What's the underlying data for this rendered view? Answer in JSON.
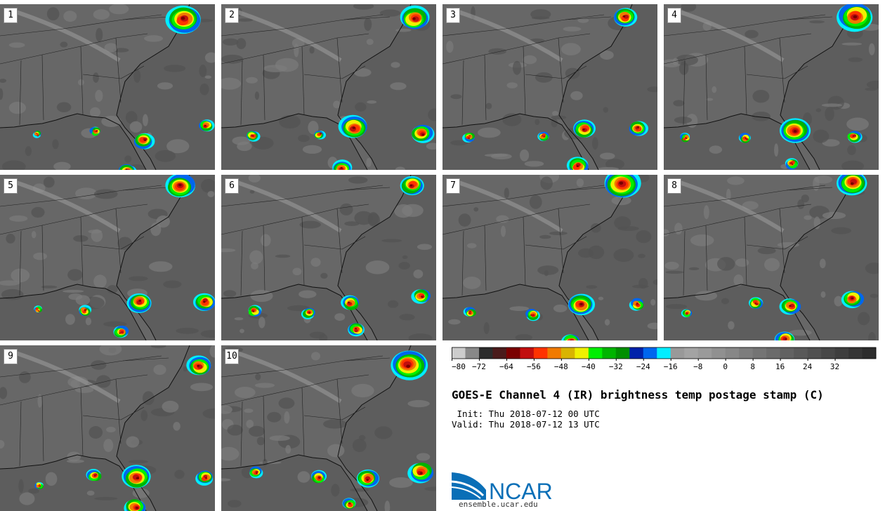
{
  "panels": [
    {
      "label": "1"
    },
    {
      "label": "2"
    },
    {
      "label": "3"
    },
    {
      "label": "4"
    },
    {
      "label": "5"
    },
    {
      "label": "6"
    },
    {
      "label": "7"
    },
    {
      "label": "8"
    },
    {
      "label": "9"
    },
    {
      "label": "10"
    }
  ],
  "colorbar": {
    "colors": [
      "#cccccc",
      "#888888",
      "#2b2b2b",
      "#4a1b1b",
      "#7a0000",
      "#c20e0e",
      "#ff3300",
      "#f07a00",
      "#d9b400",
      "#f0f000",
      "#00ee00",
      "#00b400",
      "#008f00",
      "#0022aa",
      "#0066ee",
      "#00eeff",
      "#999999",
      "#a3a3a3",
      "#9a9a9a",
      "#909090",
      "#878787",
      "#7d7d7d",
      "#747474",
      "#6b6b6b",
      "#626262",
      "#595959",
      "#505050",
      "#474747",
      "#3e3e3e",
      "#353535",
      "#2c2c2c"
    ],
    "ticks": [
      "−80",
      "−72",
      "−64",
      "−56",
      "−48",
      "−40",
      "−32",
      "−24",
      "−16",
      "−8",
      "0",
      "8",
      "16",
      "24",
      "32"
    ]
  },
  "title": "GOES-E Channel 4 (IR) brightness temp postage stamp (C)",
  "init_line": " Init: Thu 2018-07-12 00 UTC",
  "valid_line": "Valid: Thu 2018-07-12 13 UTC",
  "logo_text": "NCAR",
  "site": "ensemble.ucar.edu"
}
